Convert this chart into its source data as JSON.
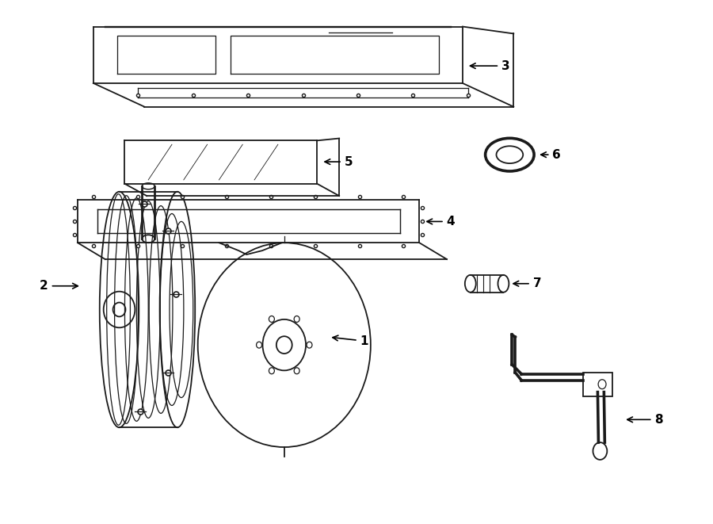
{
  "bg_color": "#ffffff",
  "line_color": "#1a1a1a",
  "fig_w": 9.0,
  "fig_h": 6.61,
  "dpi": 100
}
